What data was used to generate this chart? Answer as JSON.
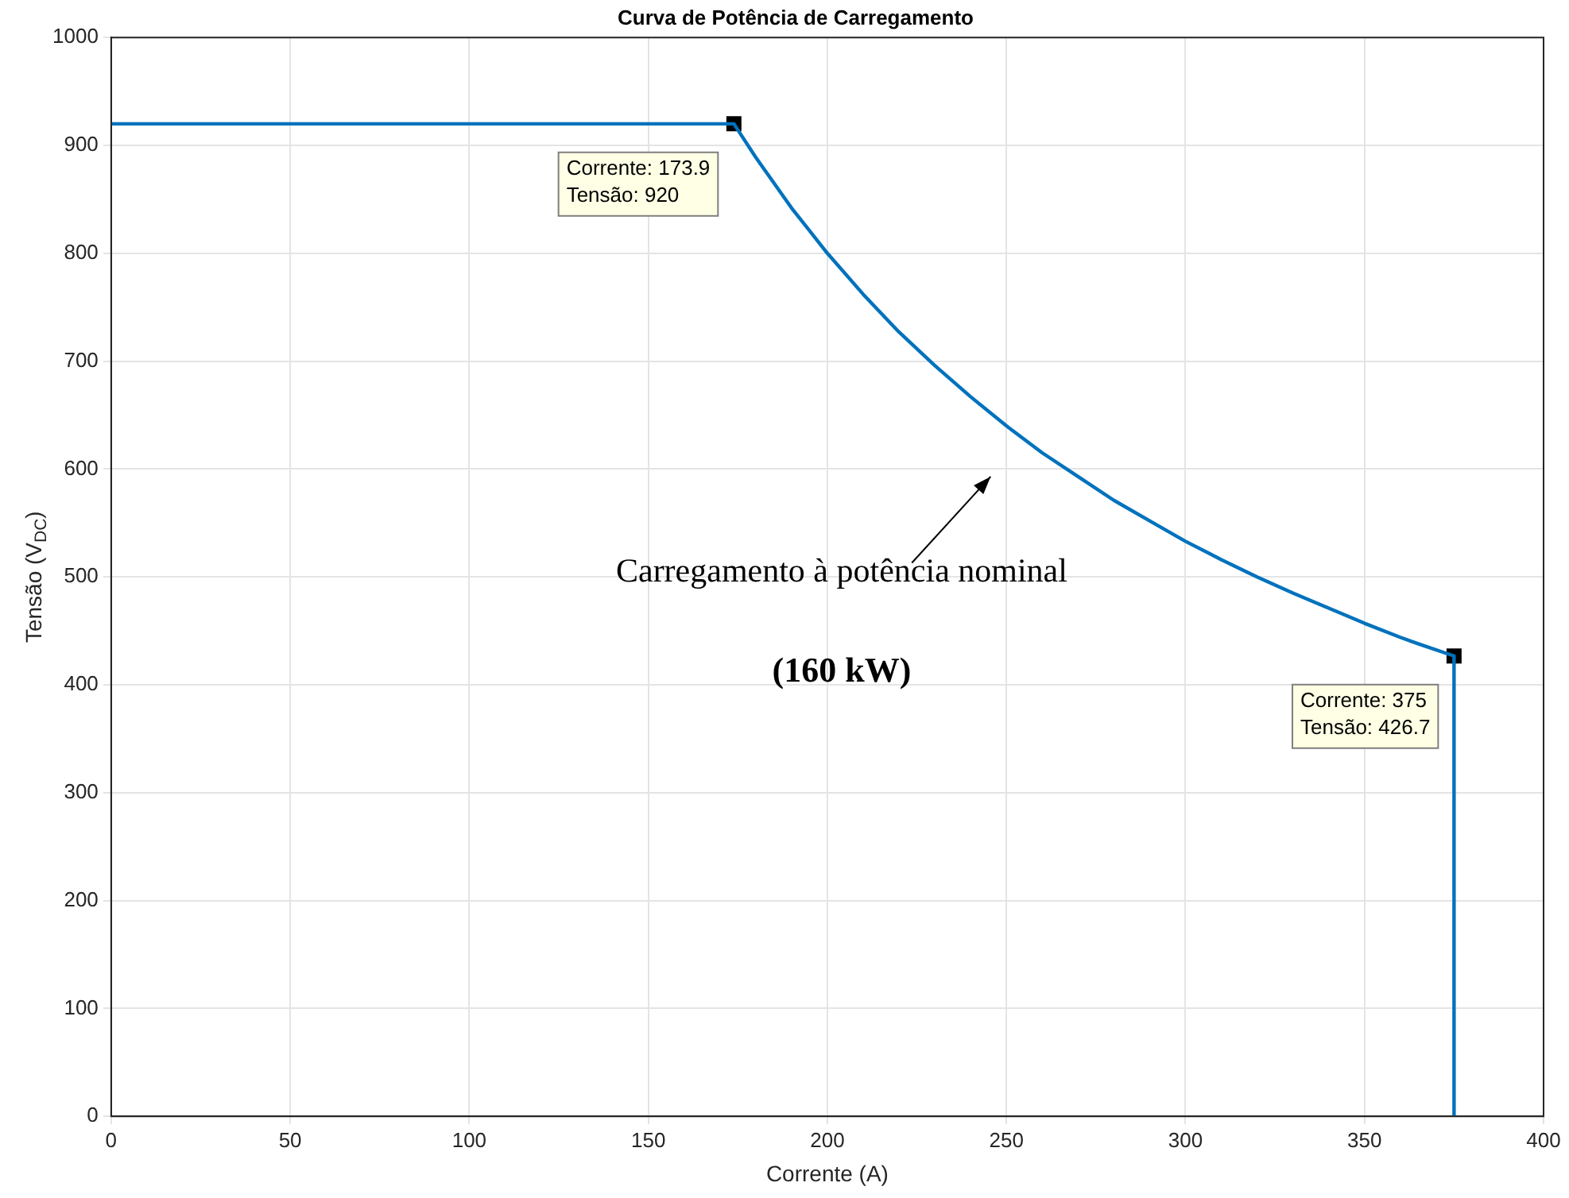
{
  "chart_data": {
    "type": "line",
    "title": "Curva de Potência de Carregamento",
    "xlabel": "Corrente (A)",
    "ylabel": "Tensão (V$_{DC}$)",
    "xlim": [
      0,
      400
    ],
    "xticks": [
      0,
      50,
      100,
      150,
      200,
      250,
      300,
      350,
      400
    ],
    "ylim": [
      0,
      1000
    ],
    "yticks": [
      0,
      100,
      200,
      300,
      400,
      500,
      600,
      700,
      800,
      900,
      1000
    ],
    "grid": true,
    "legend": false,
    "series": [
      {
        "color": "#0072bd",
        "marker": "none",
        "x": [
          0,
          173.9,
          180,
          190,
          200,
          210,
          220,
          230,
          240,
          250,
          260,
          270,
          280,
          290,
          300,
          310,
          320,
          330,
          340,
          350,
          360,
          365,
          375,
          375
        ],
        "values": [
          920,
          920,
          889,
          842,
          800,
          762,
          727,
          696,
          667,
          640,
          615,
          593,
          571,
          552,
          533,
          516,
          500,
          485,
          471,
          457,
          444,
          438,
          426.7,
          0
        ]
      },
      {
        "type": "scatter",
        "color": "#000000",
        "marker": "square",
        "x": [
          173.9,
          375
        ],
        "values": [
          920,
          426.7
        ]
      }
    ],
    "annotations": [
      {
        "text": "Corrente: 173.9\nTensão: 920",
        "x": 173.9,
        "y": 920
      },
      {
        "text": "Corrente: 375\nTensão: 426.7",
        "x": 375,
        "y": 426.7
      },
      "Carregamento à potência nominal",
      "(160 kW)"
    ]
  }
}
